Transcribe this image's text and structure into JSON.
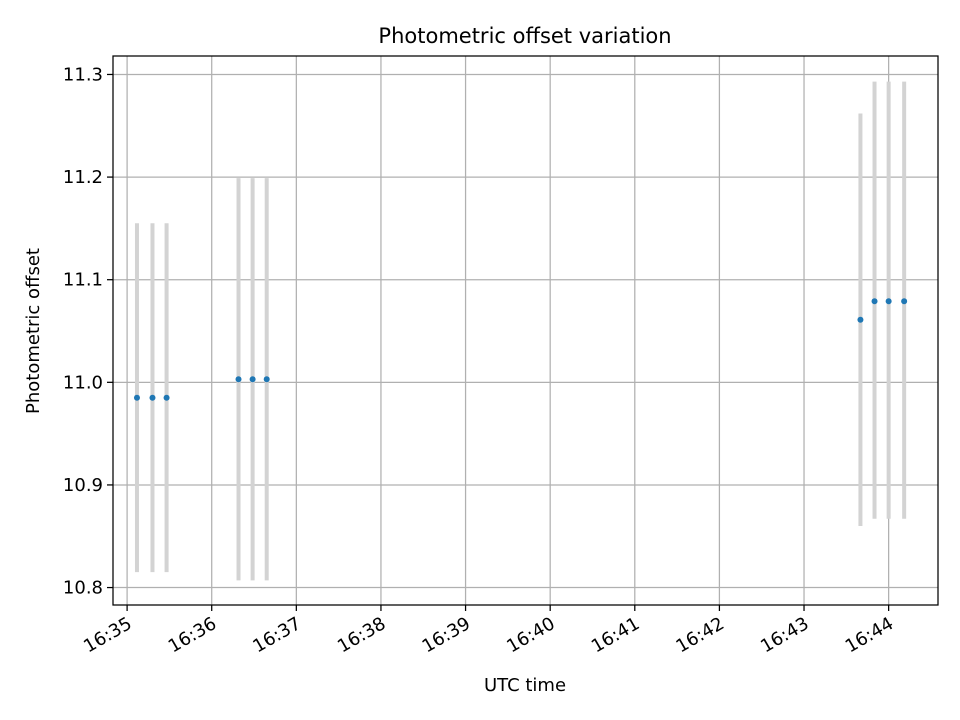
{
  "chart_data": {
    "type": "scatter",
    "title": "Photometric offset variation",
    "xlabel": "UTC time",
    "ylabel": "Photometric offset",
    "grid": true,
    "legend": "none",
    "x_tick_labels": [
      "16:35",
      "16:36",
      "16:37",
      "16:38",
      "16:39",
      "16:40",
      "16:41",
      "16:42",
      "16:43",
      "16:44"
    ],
    "y_tick_labels": [
      "10.8",
      "10.9",
      "11.0",
      "11.1",
      "11.2",
      "11.3"
    ],
    "xlim": [
      "16:34:50",
      "16:44:35"
    ],
    "ylim": [
      10.783,
      11.318
    ],
    "marker_color": "#1f77b4",
    "errorbar_color": "#d3d3d3",
    "grid_color": "#b0b0b0",
    "series": [
      {
        "x": [
          "16:35:07",
          "16:35:18",
          "16:35:28",
          "16:36:19",
          "16:36:29",
          "16:36:39",
          "16:43:40",
          "16:43:50",
          "16:44:00",
          "16:44:11"
        ],
        "y": [
          10.985,
          10.985,
          10.985,
          11.003,
          11.003,
          11.003,
          11.061,
          11.079,
          11.079,
          11.079
        ],
        "yerr_low": [
          10.815,
          10.815,
          10.815,
          10.807,
          10.807,
          10.807,
          10.86,
          10.867,
          10.867,
          10.867
        ],
        "yerr_high": [
          11.155,
          11.155,
          11.155,
          11.199,
          11.199,
          11.199,
          11.262,
          11.293,
          11.293,
          11.293
        ]
      }
    ]
  }
}
